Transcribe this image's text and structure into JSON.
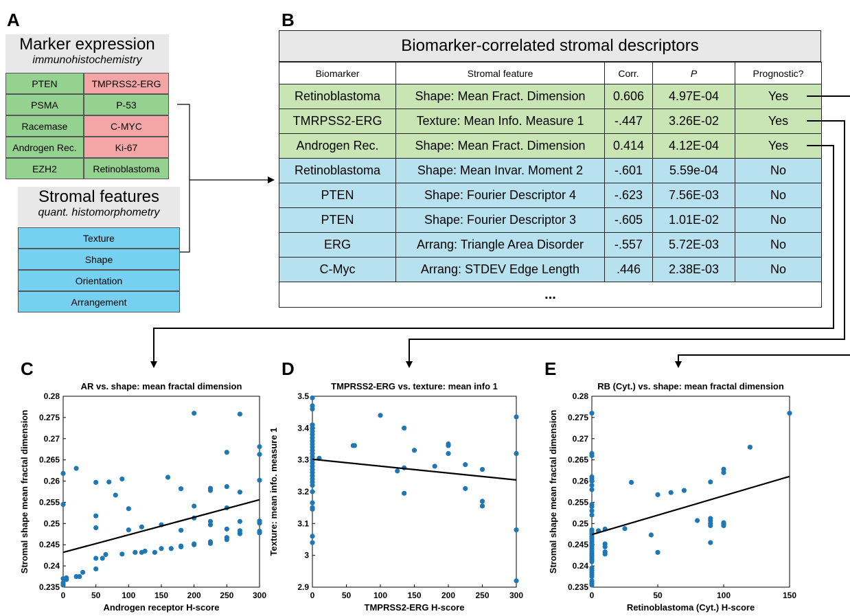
{
  "panels": {
    "A": "A",
    "B": "B",
    "C": "C",
    "D": "D",
    "E": "E"
  },
  "marker_box": {
    "title": "Marker expression",
    "subtitle": "immunohistochemistry",
    "cells": [
      {
        "text": "PTEN",
        "color": "green"
      },
      {
        "text": "TMPRSS2-ERG",
        "color": "red"
      },
      {
        "text": "PSMA",
        "color": "green"
      },
      {
        "text": "P-53",
        "color": "green"
      },
      {
        "text": "Racemase",
        "color": "green"
      },
      {
        "text": "C-MYC",
        "color": "red"
      },
      {
        "text": "Androgen Rec.",
        "color": "green"
      },
      {
        "text": "Ki-67",
        "color": "red"
      },
      {
        "text": "EZH2",
        "color": "green"
      },
      {
        "text": "Retinoblastoma",
        "color": "green"
      }
    ]
  },
  "stromal_box": {
    "title": "Stromal features",
    "subtitle": "quant. histomorphometry",
    "items": [
      "Texture",
      "Shape",
      "Orientation",
      "Arrangement"
    ]
  },
  "table": {
    "title": "Biomarker-correlated stromal descriptors",
    "headers": [
      "Biomarker",
      "Stromal feature",
      "Corr.",
      "P",
      "Prognostic?"
    ],
    "rows": [
      {
        "c": [
          "Retinoblastoma",
          "Shape: Mean Fract. Dimension",
          "0.606",
          "4.97E-04",
          "Yes"
        ],
        "color": "green"
      },
      {
        "c": [
          "TMRPSS2-ERG",
          "Texture: Mean Info. Measure 1",
          "-.447",
          "3.26E-02",
          "Yes"
        ],
        "color": "green"
      },
      {
        "c": [
          "Androgen Rec.",
          "Shape: Mean Fract. Dimension",
          "0.414",
          "4.12E-04",
          "Yes"
        ],
        "color": "green"
      },
      {
        "c": [
          "Retinoblastoma",
          "Shape: Mean Invar. Moment 2",
          "-.601",
          "5.59e-04",
          "No"
        ],
        "color": "blue"
      },
      {
        "c": [
          "PTEN",
          "Shape: Fourier Descriptor 4",
          "-.623",
          "7.56E-03",
          "No"
        ],
        "color": "blue"
      },
      {
        "c": [
          "PTEN",
          "Shape: Fourier Descriptor 3",
          "-.605",
          "1.01E-02",
          "No"
        ],
        "color": "blue"
      },
      {
        "c": [
          "ERG",
          "Arrang: Triangle Area Disorder",
          "-.557",
          "5.72E-03",
          "No"
        ],
        "color": "blue"
      },
      {
        "c": [
          "C-Myc",
          "Arrang: STDEV Edge Length",
          ".446",
          "2.38E-03",
          "No"
        ],
        "color": "blue"
      }
    ],
    "ellipsis": "..."
  },
  "colors": {
    "green": "#95d18f",
    "red": "#f4a6a6",
    "blue": "#76d1f1",
    "table_green": "#c9e5b3",
    "table_blue": "#b8e1ef",
    "point": "#1f77b4"
  },
  "chart_data": [
    {
      "type": "scatter",
      "title": "AR vs. shape: mean fractal dimension",
      "xlabel": "Androgen receptor H-score",
      "ylabel": "Stromal shape mean fractal dimension",
      "xlim": [
        0,
        300
      ],
      "ylim": [
        0.235,
        0.28
      ],
      "xticks": [
        0,
        50,
        100,
        150,
        200,
        250,
        300
      ],
      "yticks": [
        0.235,
        0.24,
        0.245,
        0.25,
        0.255,
        0.26,
        0.265,
        0.27,
        0.275,
        0.28
      ],
      "ytick_labels": [
        "0.235",
        "0.24",
        "0.245",
        "0.25",
        "0.255",
        "0.26",
        "0.265",
        "0.27",
        "0.275",
        "0.28"
      ],
      "fit": [
        [
          0,
          0.2432
        ],
        [
          300,
          0.2556
        ]
      ],
      "points": [
        [
          0,
          0.2618
        ],
        [
          0,
          0.2545
        ],
        [
          0,
          0.237
        ],
        [
          0,
          0.236
        ],
        [
          0,
          0.2355
        ],
        [
          5,
          0.2372
        ],
        [
          5,
          0.2368
        ],
        [
          20,
          0.263
        ],
        [
          20,
          0.2375
        ],
        [
          25,
          0.2375
        ],
        [
          30,
          0.2385
        ],
        [
          50,
          0.2597
        ],
        [
          50,
          0.2518
        ],
        [
          50,
          0.249
        ],
        [
          50,
          0.2418
        ],
        [
          50,
          0.2393
        ],
        [
          60,
          0.2418
        ],
        [
          65,
          0.2427
        ],
        [
          70,
          0.2598
        ],
        [
          80,
          0.2567
        ],
        [
          90,
          0.2605
        ],
        [
          90,
          0.2428
        ],
        [
          100,
          0.2535
        ],
        [
          100,
          0.2485
        ],
        [
          110,
          0.2432
        ],
        [
          120,
          0.2432
        ],
        [
          120,
          0.2492
        ],
        [
          125,
          0.2435
        ],
        [
          140,
          0.2432
        ],
        [
          150,
          0.2497
        ],
        [
          150,
          0.2441
        ],
        [
          160,
          0.2609
        ],
        [
          165,
          0.2441
        ],
        [
          180,
          0.2582
        ],
        [
          180,
          0.2484
        ],
        [
          180,
          0.2447
        ],
        [
          180,
          0.2445
        ],
        [
          200,
          0.276
        ],
        [
          200,
          0.2541
        ],
        [
          200,
          0.2513
        ],
        [
          200,
          0.2452
        ],
        [
          200,
          0.245
        ],
        [
          225,
          0.2578
        ],
        [
          225,
          0.2583
        ],
        [
          225,
          0.2505
        ],
        [
          225,
          0.2497
        ],
        [
          225,
          0.2457
        ],
        [
          225,
          0.2453
        ],
        [
          250,
          0.2668
        ],
        [
          250,
          0.2587
        ],
        [
          250,
          0.2537
        ],
        [
          250,
          0.2487
        ],
        [
          250,
          0.2467
        ],
        [
          250,
          0.2462
        ],
        [
          270,
          0.2758
        ],
        [
          270,
          0.2574
        ],
        [
          270,
          0.2505
        ],
        [
          270,
          0.2483
        ],
        [
          270,
          0.2477
        ],
        [
          270,
          0.2476
        ],
        [
          300,
          0.2681
        ],
        [
          300,
          0.2663
        ],
        [
          300,
          0.2602
        ],
        [
          300,
          0.2506
        ],
        [
          300,
          0.2501
        ],
        [
          300,
          0.2482
        ],
        [
          300,
          0.2478
        ]
      ]
    },
    {
      "type": "scatter",
      "title": "TMPRSS2-ERG vs. texture: mean info 1",
      "xlabel": "TMPRSS2-ERG H-score",
      "ylabel": "Texture: mean info. measure 1",
      "xlim": [
        0,
        300
      ],
      "ylim": [
        2.9,
        3.5
      ],
      "xticks": [
        0,
        50,
        100,
        150,
        200,
        250,
        300
      ],
      "yticks": [
        2.9,
        3.0,
        3.1,
        3.2,
        3.3,
        3.4,
        3.5
      ],
      "ytick_labels": [
        "2.9",
        "3",
        "3.1",
        "3.2",
        "3.3",
        "3.4",
        "3.5"
      ],
      "fit": [
        [
          0,
          3.302
        ],
        [
          300,
          3.237
        ]
      ],
      "points": [
        [
          0,
          3.495
        ],
        [
          0,
          3.47
        ],
        [
          0,
          3.46
        ],
        [
          0,
          3.41
        ],
        [
          0,
          3.4
        ],
        [
          0,
          3.39
        ],
        [
          0,
          3.38
        ],
        [
          0,
          3.37
        ],
        [
          0,
          3.36
        ],
        [
          0,
          3.35
        ],
        [
          0,
          3.34
        ],
        [
          0,
          3.33
        ],
        [
          0,
          3.32
        ],
        [
          0,
          3.31
        ],
        [
          0,
          3.3
        ],
        [
          0,
          3.29
        ],
        [
          0,
          3.28
        ],
        [
          0,
          3.27
        ],
        [
          0,
          3.26
        ],
        [
          0,
          3.25
        ],
        [
          0,
          3.24
        ],
        [
          0,
          3.23
        ],
        [
          0,
          3.22
        ],
        [
          0,
          3.2
        ],
        [
          0,
          3.165
        ],
        [
          0,
          3.15
        ],
        [
          0,
          3.145
        ],
        [
          0,
          3.06
        ],
        [
          0,
          3.04
        ],
        [
          10,
          3.305
        ],
        [
          60,
          3.345
        ],
        [
          62,
          3.345
        ],
        [
          100,
          3.44
        ],
        [
          125,
          3.265
        ],
        [
          135,
          3.4
        ],
        [
          135,
          3.275
        ],
        [
          135,
          3.195
        ],
        [
          150,
          3.33
        ],
        [
          180,
          3.28
        ],
        [
          200,
          3.35
        ],
        [
          200,
          3.345
        ],
        [
          200,
          3.32
        ],
        [
          225,
          3.285
        ],
        [
          225,
          3.21
        ],
        [
          250,
          3.27
        ],
        [
          250,
          3.17
        ],
        [
          250,
          3.155
        ],
        [
          300,
          3.435
        ],
        [
          300,
          3.32
        ],
        [
          300,
          3.08
        ],
        [
          300,
          2.92
        ]
      ]
    },
    {
      "type": "scatter",
      "title": "RB (Cyt.) vs. shape: mean fractal dimension",
      "xlabel": "Retinoblastoma (Cyt.) H-score",
      "ylabel": "Stromal shape mean fractal dimension",
      "xlim": [
        0,
        150
      ],
      "ylim": [
        0.235,
        0.28
      ],
      "xticks": [
        0,
        50,
        100,
        150
      ],
      "yticks": [
        0.235,
        0.24,
        0.245,
        0.25,
        0.255,
        0.26,
        0.265,
        0.27,
        0.275,
        0.28
      ],
      "ytick_labels": [
        "0.235",
        "0.24",
        "0.245",
        "0.25",
        "0.255",
        "0.26",
        "0.265",
        "0.27",
        "0.275",
        "0.28"
      ],
      "fit": [
        [
          0,
          0.2474
        ],
        [
          150,
          0.2611
        ]
      ],
      "points": [
        [
          0,
          0.276
        ],
        [
          0,
          0.2665
        ],
        [
          0,
          0.266
        ],
        [
          0,
          0.261
        ],
        [
          0,
          0.2605
        ],
        [
          0,
          0.26
        ],
        [
          0,
          0.259
        ],
        [
          0,
          0.258
        ],
        [
          0,
          0.2545
        ],
        [
          0,
          0.254
        ],
        [
          0,
          0.253
        ],
        [
          0,
          0.252
        ],
        [
          0,
          0.2485
        ],
        [
          0,
          0.248
        ],
        [
          0,
          0.2475
        ],
        [
          0,
          0.247
        ],
        [
          0,
          0.2465
        ],
        [
          0,
          0.246
        ],
        [
          0,
          0.2455
        ],
        [
          0,
          0.245
        ],
        [
          0,
          0.2445
        ],
        [
          0,
          0.244
        ],
        [
          0,
          0.2435
        ],
        [
          0,
          0.243
        ],
        [
          0,
          0.2425
        ],
        [
          0,
          0.242
        ],
        [
          0,
          0.2415
        ],
        [
          0,
          0.241
        ],
        [
          0,
          0.2395
        ],
        [
          0,
          0.239
        ],
        [
          0,
          0.2385
        ],
        [
          0,
          0.238
        ],
        [
          0,
          0.2375
        ],
        [
          0,
          0.2365
        ],
        [
          0,
          0.236
        ],
        [
          0,
          0.2355
        ],
        [
          5,
          0.2483
        ],
        [
          10,
          0.2487
        ],
        [
          10,
          0.2452
        ],
        [
          10,
          0.2445
        ],
        [
          10,
          0.2433
        ],
        [
          10,
          0.2428
        ],
        [
          25,
          0.2488
        ],
        [
          30,
          0.2597
        ],
        [
          45,
          0.2473
        ],
        [
          50,
          0.2568
        ],
        [
          50,
          0.2432
        ],
        [
          60,
          0.2573
        ],
        [
          70,
          0.2578
        ],
        [
          80,
          0.2507
        ],
        [
          90,
          0.2598
        ],
        [
          90,
          0.2512
        ],
        [
          90,
          0.2507
        ],
        [
          90,
          0.25
        ],
        [
          90,
          0.2495
        ],
        [
          90,
          0.2455
        ],
        [
          100,
          0.2628
        ],
        [
          100,
          0.262
        ],
        [
          100,
          0.2502
        ],
        [
          100,
          0.2498
        ],
        [
          100,
          0.2495
        ],
        [
          120,
          0.268
        ],
        [
          150,
          0.276
        ]
      ]
    }
  ]
}
